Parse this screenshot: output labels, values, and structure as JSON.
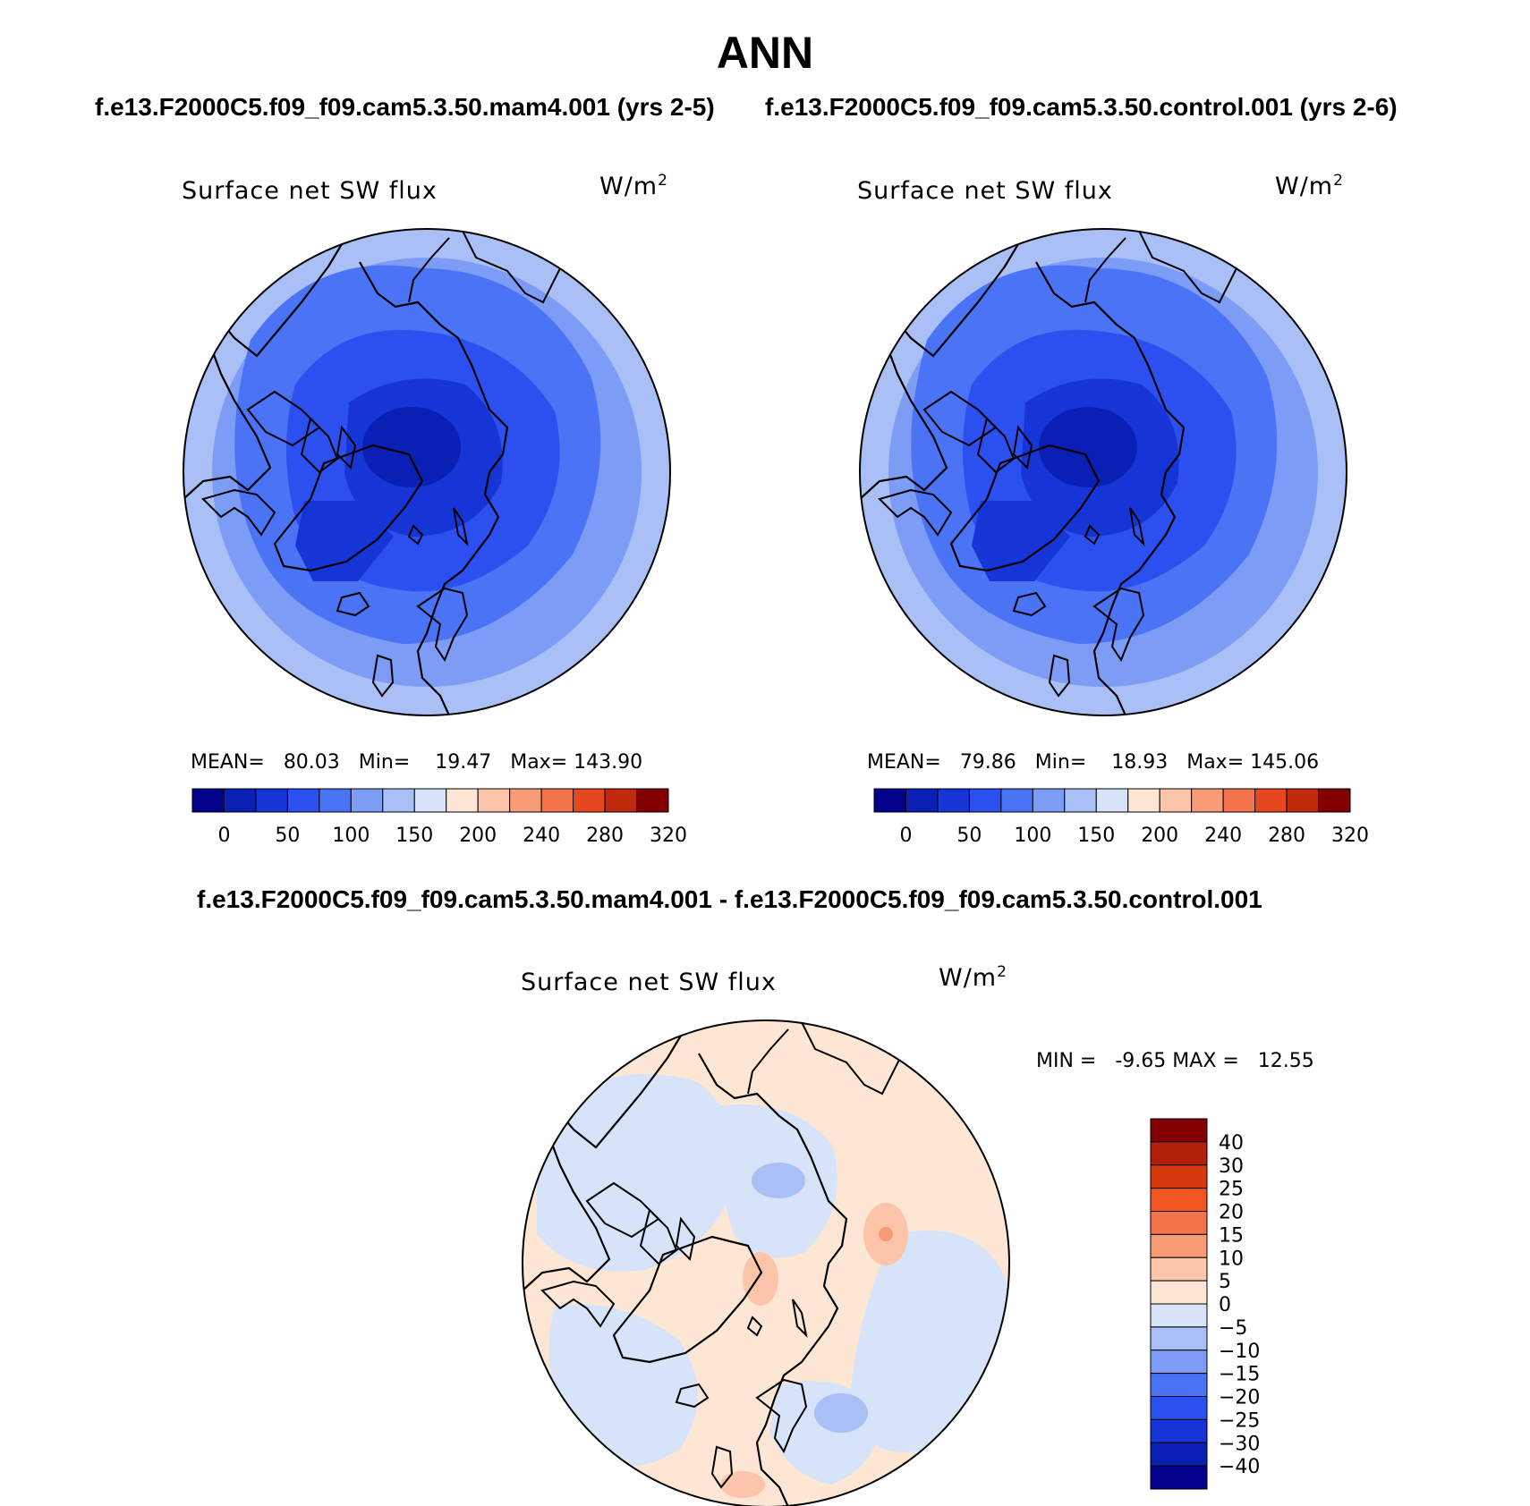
{
  "header": {
    "season": "ANN",
    "case_a": "f.e13.F2000C5.f09_f09.cam5.3.50.mam4.001 (yrs 2-5)",
    "case_b": "f.e13.F2000C5.f09_f09.cam5.3.50.control.001 (yrs 2-6)",
    "diff_title": "f.e13.F2000C5.f09_f09.cam5.3.50.mam4.001 - f.e13.F2000C5.f09_f09.cam5.3.50.control.001"
  },
  "panels": [
    {
      "variable": "Surface net SW flux",
      "units_base": "W/m",
      "units_exp": "2",
      "stats": {
        "mean_label": "MEAN=",
        "mean": "80.03",
        "min_label": "Min=",
        "min": "19.47",
        "max_label": "Max=",
        "max": "143.90"
      }
    },
    {
      "variable": "Surface net SW flux",
      "units_base": "W/m",
      "units_exp": "2",
      "stats": {
        "mean_label": "MEAN=",
        "mean": "79.86",
        "min_label": "Min=",
        "min": "18.93",
        "max_label": "Max=",
        "max": "145.06"
      }
    }
  ],
  "diff_panel": {
    "variable": "Surface net SW flux",
    "units_base": "W/m",
    "units_exp": "2",
    "stats": {
      "min_label": "MIN =",
      "min": "-9.65",
      "max_label": "MAX =",
      "max": "12.55"
    }
  },
  "abs_colorbar": {
    "colors": [
      "#00008b",
      "#0a20b4",
      "#1535d6",
      "#2c50f0",
      "#4a73f5",
      "#7c9cf5",
      "#aabff6",
      "#d6e3f8",
      "#fde6d4",
      "#fcc4a8",
      "#f89c77",
      "#f4734a",
      "#e5481f",
      "#c12a0c",
      "#830000"
    ],
    "labels": [
      "0",
      "50",
      "100",
      "150",
      "200",
      "240",
      "280",
      "320"
    ]
  },
  "diff_colorbar": {
    "colors_top_to_bottom": [
      "#830000",
      "#b3200a",
      "#d9380f",
      "#f15522",
      "#f4734a",
      "#f89c77",
      "#fcc4a8",
      "#fde6d4",
      "#d6e3f8",
      "#aabff6",
      "#7c9cf5",
      "#4a73f5",
      "#2c50f0",
      "#1535d6",
      "#0a20b4",
      "#00008b"
    ],
    "labels_top_to_bottom": [
      "40",
      "30",
      "25",
      "20",
      "15",
      "10",
      "5",
      "0",
      "−5",
      "−10",
      "−15",
      "−20",
      "−25",
      "−30",
      "−40"
    ]
  },
  "map_colors": {
    "ocean_light": "#aabff6",
    "mid": "#7c9cf5",
    "mid2": "#4a73f5",
    "deep": "#2c50f0",
    "deeper": "#1535d6",
    "deepest": "#0a20b4",
    "diff_pos": "#fde6d4",
    "diff_pos2": "#fcc4a8",
    "diff_pos3": "#f89c77",
    "diff_neg": "#d6e3f8",
    "diff_neg2": "#aabff6",
    "coast": "#000000"
  }
}
